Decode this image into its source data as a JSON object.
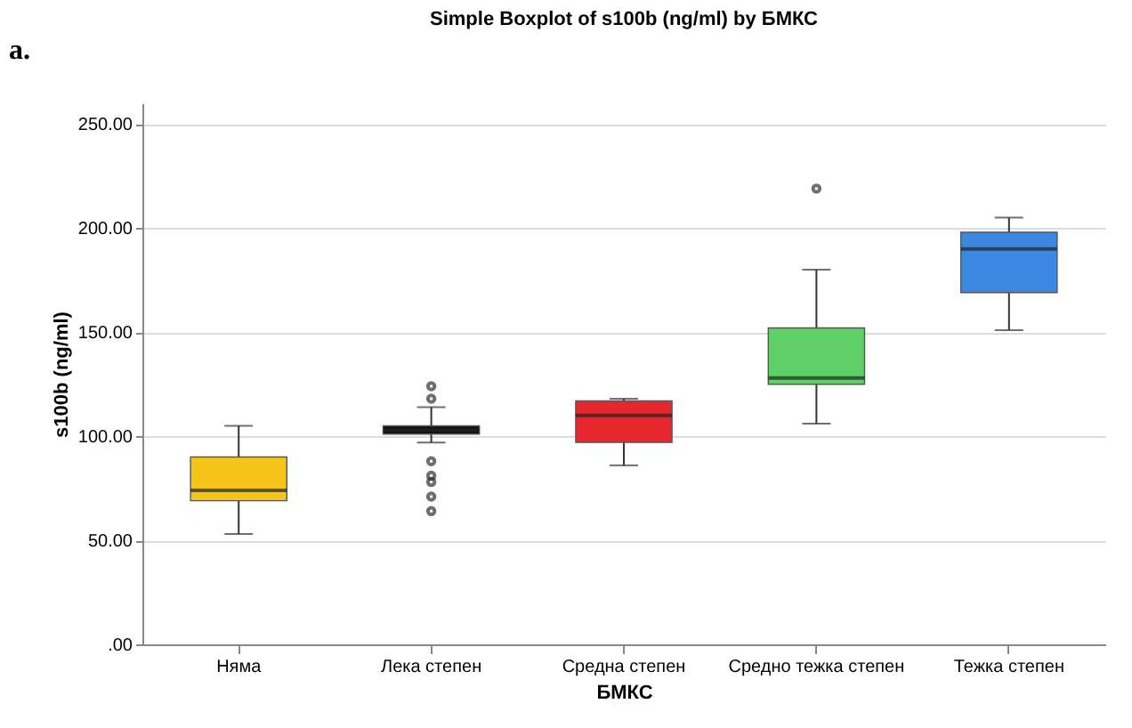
{
  "chart_data": {
    "type": "box",
    "title": "Simple Boxplot of s100b (ng/ml) by БМКС",
    "xlabel": "БМКС",
    "ylabel": "s100b (ng/ml)",
    "annotations": [
      "a."
    ],
    "categories": [
      "Няма",
      "Лека степен",
      "Средна степен",
      "Средно тежка степен",
      "Тежка степен"
    ],
    "colors": [
      "#f5c518",
      "#111111",
      "#e8262d",
      "#5fd068",
      "#3c87e0"
    ],
    "boxes": [
      {
        "low": 53,
        "q1": 69,
        "median": 74,
        "q3": 90,
        "high": 105
      },
      {
        "low": 97,
        "q1": 101,
        "median": 103,
        "q3": 105,
        "high": 114,
        "outliers": [
          124,
          118,
          88,
          81,
          78,
          71,
          64
        ]
      },
      {
        "low": 86,
        "q1": 97,
        "median": 110,
        "q3": 117,
        "high": 118
      },
      {
        "low": 106,
        "q1": 125,
        "median": 128,
        "q3": 152,
        "high": 180,
        "outliers": [
          219
        ]
      },
      {
        "low": 151,
        "q1": 169,
        "median": 190,
        "q3": 198,
        "high": 205
      }
    ],
    "ylim": [
      0,
      260
    ],
    "yticks": [
      {
        "value": 0,
        "label": ".00"
      },
      {
        "value": 50,
        "label": "50.00"
      },
      {
        "value": 100,
        "label": "100.00"
      },
      {
        "value": 150,
        "label": "150.00"
      },
      {
        "value": 200,
        "label": "200.00"
      },
      {
        "value": 250,
        "label": "250.00"
      }
    ],
    "grid": "y",
    "legend": false
  }
}
